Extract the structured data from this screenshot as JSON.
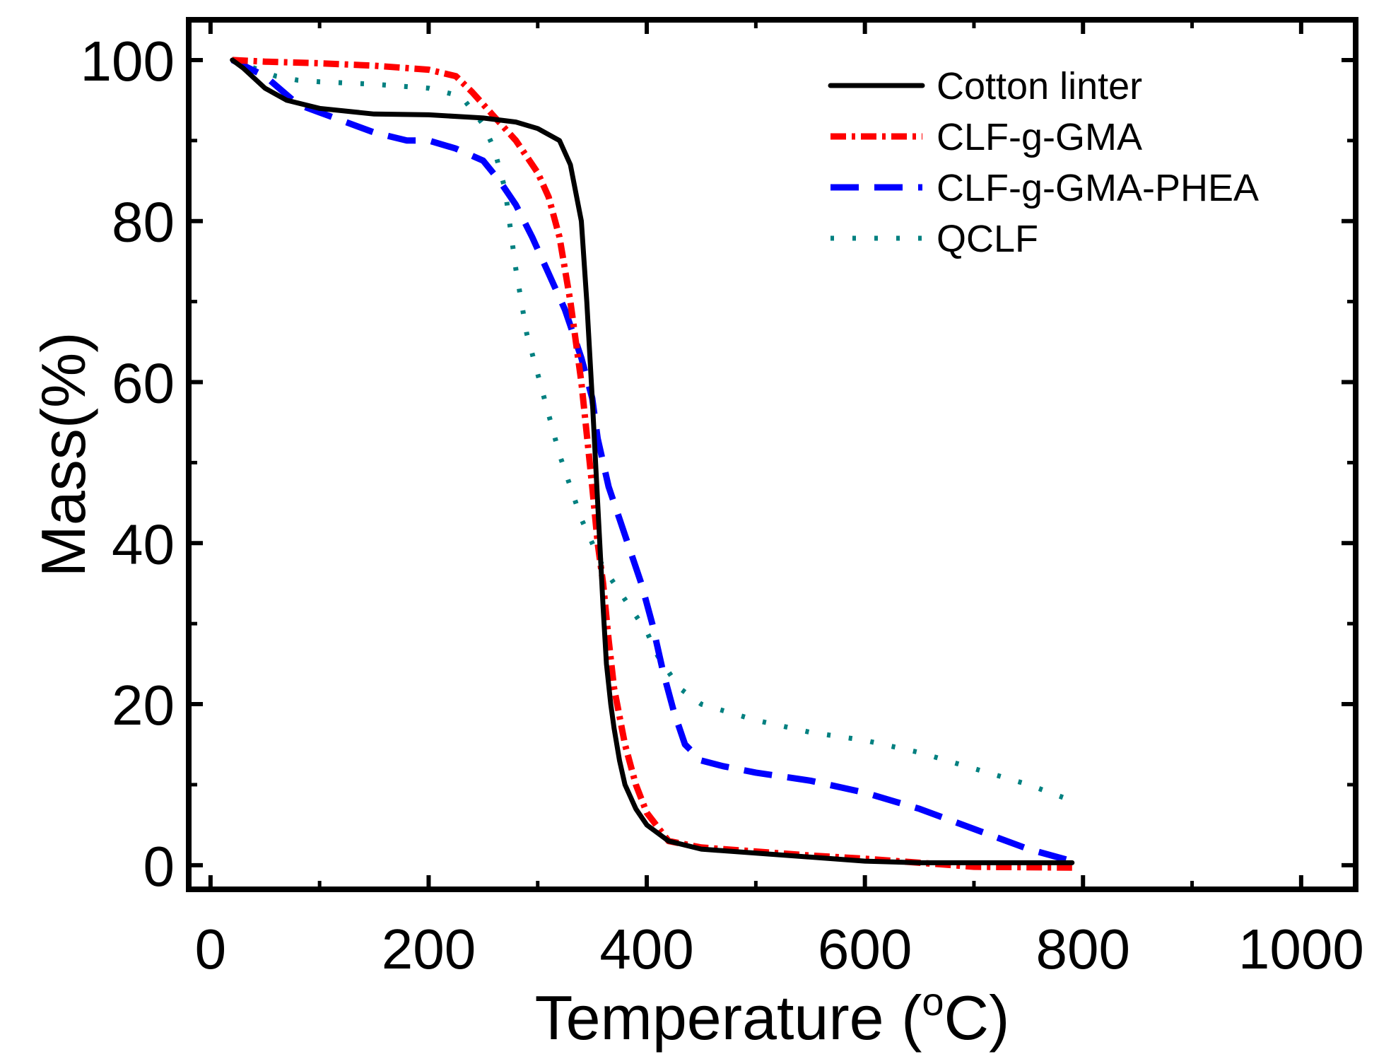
{
  "chart_data": {
    "type": "line",
    "title": "",
    "xlabel": "Temperature (",
    "xlabel_sup": "o",
    "xlabel_tail": "C)",
    "ylabel": "Mass(%)",
    "xlim": [
      -20,
      1050
    ],
    "ylim": [
      -3,
      105
    ],
    "x_ticks": [
      0,
      200,
      400,
      600,
      800,
      1000
    ],
    "x_tick_labels": [
      "0",
      "200",
      "400",
      "600",
      "800",
      "1000"
    ],
    "x_minor_ticks": [
      100,
      300,
      500,
      700,
      900
    ],
    "y_ticks": [
      0,
      20,
      40,
      60,
      80,
      100
    ],
    "y_tick_labels": [
      "0",
      "20",
      "40",
      "60",
      "80",
      "100"
    ],
    "y_minor_ticks": [
      10,
      30,
      50,
      70,
      90
    ],
    "grid": false,
    "legend_position": "top-right",
    "series": [
      {
        "name": "Cotton linter",
        "color": "#000000",
        "style": "solid",
        "x": [
          20,
          30,
          50,
          70,
          100,
          150,
          200,
          250,
          280,
          300,
          320,
          330,
          340,
          345,
          350,
          355,
          360,
          363,
          367,
          370,
          375,
          380,
          390,
          400,
          420,
          450,
          500,
          550,
          600,
          650,
          700,
          790
        ],
        "y": [
          100,
          99,
          96.5,
          95,
          94,
          93.3,
          93.2,
          92.8,
          92.3,
          91.5,
          90,
          87,
          80,
          70,
          58,
          45,
          32,
          25,
          20,
          17,
          13,
          10,
          7,
          5,
          3,
          2,
          1.5,
          1,
          0.5,
          0.3,
          0.3,
          0.3
        ]
      },
      {
        "name": "CLF-g-GMA",
        "color": "#ff0000",
        "style": "dash-dot",
        "x": [
          20,
          50,
          100,
          150,
          200,
          225,
          240,
          260,
          280,
          300,
          310,
          320,
          330,
          340,
          350,
          355,
          360,
          365,
          370,
          380,
          390,
          400,
          420,
          450,
          500,
          550,
          600,
          650,
          700,
          790
        ],
        "y": [
          100,
          99.8,
          99.6,
          99.3,
          98.8,
          98,
          96,
          93,
          90,
          86,
          83,
          78,
          70,
          60,
          47,
          40,
          35,
          28,
          22,
          15,
          10,
          6.5,
          3,
          2.2,
          1.7,
          1.2,
          0.8,
          0.3,
          -0.2,
          -0.3
        ]
      },
      {
        "name": "CLF-g-GMA-PHEA",
        "color": "#0000ff",
        "style": "dash",
        "x": [
          20,
          50,
          80,
          100,
          150,
          180,
          200,
          225,
          250,
          265,
          280,
          295,
          310,
          325,
          340,
          350,
          355,
          365,
          375,
          385,
          395,
          405,
          415,
          425,
          435,
          450,
          470,
          500,
          550,
          600,
          650,
          700,
          750,
          790
        ],
        "y": [
          100,
          98,
          94.5,
          93.5,
          91,
          90,
          90,
          89,
          87.5,
          85,
          82,
          78,
          73.5,
          69,
          63,
          58,
          53,
          47,
          43,
          39,
          35,
          30,
          24,
          19,
          15,
          13,
          12.3,
          11.5,
          10.5,
          9,
          7,
          4.5,
          2,
          0.5
        ]
      },
      {
        "name": "QCLF",
        "color": "#008080",
        "style": "dot",
        "x": [
          20,
          40,
          60,
          80,
          100,
          150,
          200,
          230,
          250,
          260,
          270,
          275,
          280,
          285,
          290,
          300,
          310,
          320,
          330,
          340,
          350,
          360,
          370,
          380,
          390,
          400,
          410,
          420,
          430,
          440,
          450,
          500,
          550,
          600,
          650,
          700,
          750,
          790
        ],
        "y": [
          100,
          99,
          98,
          97.5,
          97.3,
          97,
          96.5,
          95.5,
          92,
          89,
          84,
          79,
          74,
          70,
          66,
          61,
          56,
          51,
          47,
          43,
          40,
          37,
          35,
          33,
          31,
          29,
          26,
          24,
          22,
          21,
          20,
          18,
          16.5,
          15.5,
          14,
          12,
          10,
          8
        ]
      }
    ]
  }
}
